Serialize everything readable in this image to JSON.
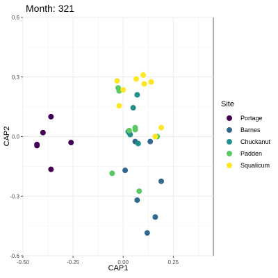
{
  "chart_data": {
    "type": "scatter",
    "title": "Month: 321",
    "xlabel": "CAP1",
    "ylabel": "CAP2",
    "xlim": [
      -0.5,
      0.45
    ],
    "ylim": [
      -0.6,
      0.6
    ],
    "x_ticks": [
      -0.5,
      -0.25,
      0,
      0.25
    ],
    "x_tick_labels": [
      "-0.50",
      "-0.25",
      "0.00",
      "0.25"
    ],
    "y_ticks": [
      -0.6,
      -0.3,
      0,
      0.3,
      0.6
    ],
    "y_tick_labels": [
      "-0.6",
      "-0.3",
      "0.0",
      "0.3",
      "0.6"
    ],
    "grid": true,
    "legend": {
      "title": "Site",
      "placement": "right"
    },
    "series": [
      {
        "name": "Portage",
        "color": "#440154",
        "points": [
          [
            -0.36,
            0.1
          ],
          [
            -0.4,
            0.02
          ],
          [
            -0.43,
            -0.04
          ],
          [
            -0.43,
            -0.045
          ],
          [
            -0.26,
            -0.03
          ],
          [
            -0.36,
            -0.165
          ]
        ]
      },
      {
        "name": "Barnes",
        "color": "#31688e",
        "points": [
          [
            0.01,
            -0.17
          ],
          [
            0.03,
            0.02
          ],
          [
            0.06,
            -0.025
          ],
          [
            0.135,
            -0.025
          ],
          [
            0.19,
            -0.225
          ],
          [
            0.07,
            -0.32
          ],
          [
            0.16,
            -0.405
          ],
          [
            0.12,
            -0.485
          ]
        ]
      },
      {
        "name": "Chuckanut",
        "color": "#21908c",
        "points": [
          [
            0.07,
            0.21
          ],
          [
            0.05,
            0.145
          ],
          [
            0.025,
            0.025
          ],
          [
            0.035,
            0.01
          ],
          [
            0.075,
            -0.035
          ]
        ]
      },
      {
        "name": "Padden",
        "color": "#5cc863",
        "points": [
          [
            -0.025,
            0.245
          ],
          [
            -0.02,
            0.23
          ],
          [
            0.03,
            0.03
          ],
          [
            0.06,
            0.045
          ],
          [
            0.06,
            0.035
          ],
          [
            -0.055,
            -0.185
          ],
          [
            0.08,
            -0.275
          ],
          [
            0.17,
            0.0
          ]
        ]
      },
      {
        "name": "Squalicum",
        "color": "#fde725",
        "points": [
          [
            -0.03,
            0.28
          ],
          [
            0.0,
            0.235
          ],
          [
            0.065,
            0.29
          ],
          [
            0.1,
            0.31
          ],
          [
            0.105,
            0.265
          ],
          [
            0.14,
            0.275
          ],
          [
            0.19,
            0.045
          ],
          [
            -0.02,
            0.155
          ],
          [
            0.16,
            0.0
          ]
        ]
      }
    ]
  }
}
